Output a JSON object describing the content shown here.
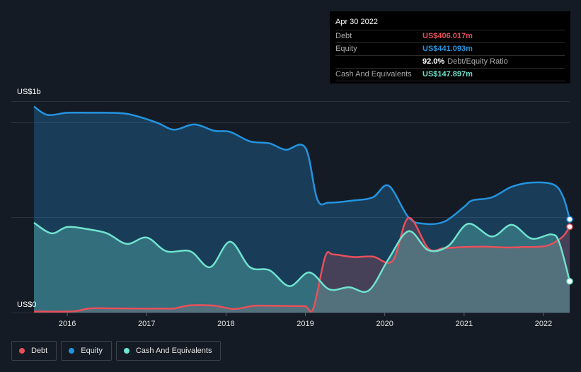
{
  "tooltip": {
    "date": "Apr 30 2022",
    "rows": [
      {
        "label": "Debt",
        "value": "US$406.017m",
        "color": "#e8505b"
      },
      {
        "label": "Equity",
        "value": "US$441.093m",
        "color": "#2394df"
      },
      {
        "ratio_value": "92.0%",
        "ratio_label": "Debt/Equity Ratio"
      },
      {
        "label": "Cash And Equivalents",
        "value": "US$147.897m",
        "color": "#6fe3cf"
      }
    ]
  },
  "axis": {
    "y_top_label": "US$1b",
    "y_bottom_label": "US$0"
  },
  "legend": [
    {
      "label": "Debt",
      "color": "#e8505b"
    },
    {
      "label": "Equity",
      "color": "#2394df"
    },
    {
      "label": "Cash And Equivalents",
      "color": "#6fe3cf"
    }
  ],
  "chart_data": {
    "type": "area",
    "y_unit": "US$m",
    "ylim": [
      0,
      1000
    ],
    "x_ticks": [
      "2016",
      "2017",
      "2018",
      "2019",
      "2020",
      "2021",
      "2022"
    ],
    "xlim": [
      2015.58,
      2022.33
    ],
    "series": [
      {
        "name": "Debt",
        "color": "#e8505b",
        "x": [
          2015.58,
          2016.0,
          2016.12,
          2016.3,
          2016.6,
          2016.9,
          2017.2,
          2017.35,
          2017.55,
          2017.85,
          2018.1,
          2018.35,
          2018.6,
          2018.85,
          2019.0,
          2019.1,
          2019.25,
          2019.35,
          2019.6,
          2019.85,
          2020.1,
          2020.3,
          2020.55,
          2020.75,
          2021.0,
          2021.25,
          2021.5,
          2021.75,
          2022.0,
          2022.13,
          2022.25,
          2022.33
        ],
        "y": [
          5,
          5,
          8,
          20,
          20,
          19,
          19,
          20,
          34,
          33,
          17,
          32,
          32,
          31,
          30,
          20,
          265,
          275,
          263,
          265,
          245,
          448,
          303,
          305,
          310,
          312,
          308,
          310,
          313,
          330,
          362,
          406
        ]
      },
      {
        "name": "Equity",
        "color": "#2394df",
        "x": [
          2015.58,
          2015.75,
          2016.0,
          2016.25,
          2016.5,
          2016.75,
          2017.0,
          2017.15,
          2017.35,
          2017.6,
          2017.85,
          2018.05,
          2018.3,
          2018.55,
          2018.75,
          2019.0,
          2019.15,
          2019.3,
          2019.6,
          2019.85,
          2020.05,
          2020.3,
          2020.5,
          2020.75,
          2021.0,
          2021.1,
          2021.35,
          2021.6,
          2021.85,
          2022.13,
          2022.25,
          2022.33
        ],
        "y": [
          975,
          935,
          945,
          945,
          945,
          940,
          915,
          895,
          865,
          890,
          860,
          855,
          810,
          800,
          770,
          780,
          535,
          520,
          530,
          545,
          600,
          450,
          420,
          430,
          500,
          530,
          545,
          595,
          615,
          605,
          545,
          441
        ]
      },
      {
        "name": "Cash And Equivalents",
        "color": "#6fe3cf",
        "x": [
          2015.58,
          2015.8,
          2016.0,
          2016.25,
          2016.5,
          2016.75,
          2017.0,
          2017.25,
          2017.55,
          2017.8,
          2018.05,
          2018.3,
          2018.55,
          2018.8,
          2019.05,
          2019.3,
          2019.55,
          2019.8,
          2020.05,
          2020.3,
          2020.55,
          2020.8,
          2021.05,
          2021.35,
          2021.6,
          2021.85,
          2022.1,
          2022.2,
          2022.33
        ],
        "y": [
          425,
          375,
          405,
          395,
          375,
          325,
          355,
          290,
          290,
          215,
          335,
          215,
          200,
          125,
          190,
          110,
          120,
          105,
          255,
          385,
          295,
          315,
          420,
          360,
          415,
          350,
          370,
          330,
          148
        ]
      }
    ]
  }
}
